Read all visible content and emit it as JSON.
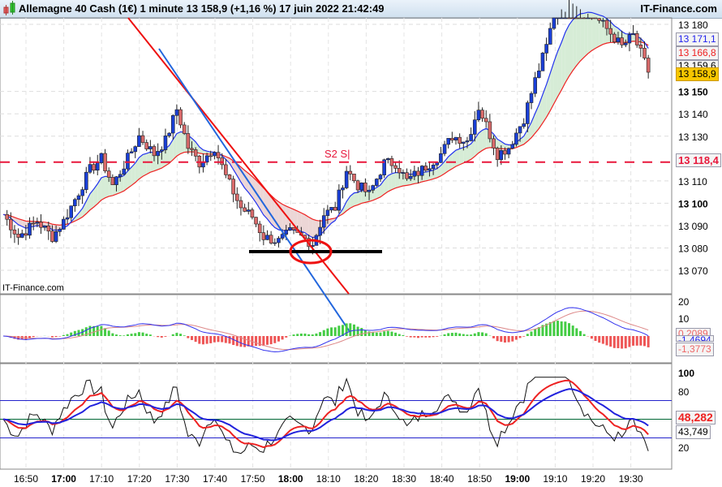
{
  "header": {
    "title": "Allemagne 40 Cash (1€) 1 minute 13 158,9 (+1,16 %) 17 juin 2022 21:42:49",
    "brand": "IT-Finance.com"
  },
  "watermark": "IT-Finance.com",
  "colors": {
    "up": "#1a3fd6",
    "down": "#d96a6a",
    "ma_fast": "#2233ee",
    "ma_slow": "#ee2222",
    "support": "#e8173b"
  },
  "chart_data": {
    "type": "candlestick",
    "interval": "1 minute",
    "price_ticks": [
      "13 180",
      "13 150",
      "13 140",
      "13 130",
      "13 110",
      "13 100",
      "13 090",
      "13 080",
      "13 070"
    ],
    "price_tick_values": [
      13180,
      13150,
      13140,
      13130,
      13110,
      13100,
      13090,
      13080,
      13070
    ],
    "bold_ticks": [
      "13 150",
      "13 100"
    ],
    "price_range": [
      13067,
      13183
    ],
    "time_labels": [
      "16:50",
      "17:00",
      "17:10",
      "17:20",
      "17:30",
      "17:40",
      "17:50",
      "18:00",
      "18:10",
      "18:20",
      "18:30",
      "18:40",
      "18:50",
      "19:00",
      "19:10",
      "19:20",
      "19:30"
    ],
    "bold_times": [
      "17:00",
      "18:00",
      "19:00"
    ],
    "close_path": [
      [
        0,
        13095
      ],
      [
        4,
        13085
      ],
      [
        9,
        13092
      ],
      [
        13,
        13085
      ],
      [
        16,
        13092
      ],
      [
        20,
        13105
      ],
      [
        23,
        13115
      ],
      [
        26,
        13120
      ],
      [
        29,
        13108
      ],
      [
        33,
        13120
      ],
      [
        36,
        13130
      ],
      [
        40,
        13122
      ],
      [
        43,
        13128
      ],
      [
        46,
        13142
      ],
      [
        49,
        13125
      ],
      [
        52,
        13118
      ],
      [
        56,
        13125
      ],
      [
        59,
        13112
      ],
      [
        63,
        13098
      ],
      [
        66,
        13094
      ],
      [
        69,
        13085
      ],
      [
        73,
        13083
      ],
      [
        76,
        13087
      ],
      [
        79,
        13085
      ],
      [
        82,
        13082
      ],
      [
        85,
        13095
      ],
      [
        88,
        13098
      ],
      [
        91,
        13115
      ],
      [
        94,
        13108
      ],
      [
        97,
        13104
      ],
      [
        101,
        13118
      ],
      [
        104,
        13118
      ],
      [
        107,
        13110
      ],
      [
        111,
        13115
      ],
      [
        116,
        13122
      ],
      [
        119,
        13130
      ],
      [
        123,
        13128
      ],
      [
        126,
        13143
      ],
      [
        128,
        13135
      ],
      [
        131,
        13122
      ],
      [
        134,
        13125
      ],
      [
        138,
        13138
      ],
      [
        141,
        13155
      ],
      [
        144,
        13170
      ],
      [
        146,
        13185
      ],
      [
        150,
        13195
      ],
      [
        156,
        13185
      ],
      [
        160,
        13178
      ],
      [
        164,
        13170
      ],
      [
        167,
        13175
      ],
      [
        170,
        13163
      ],
      [
        171,
        13159
      ]
    ],
    "start_time": "16:44",
    "labels": {
      "last": "13 158,9",
      "ma_fast": "13 171,1",
      "ma_slow": "13 166,8",
      "prev": "13 159,6",
      "support_value": "13 118,4",
      "support_name": "S2 S|"
    },
    "macd": {
      "ticks": [
        "20",
        "10"
      ],
      "labels": [
        "0,2089",
        "-1,4694",
        "-1,3773"
      ]
    },
    "rsi": {
      "ticks": [
        "100",
        "80",
        "20"
      ],
      "levels": [
        70,
        30
      ],
      "labels": [
        "48,282",
        "43,749"
      ]
    }
  }
}
